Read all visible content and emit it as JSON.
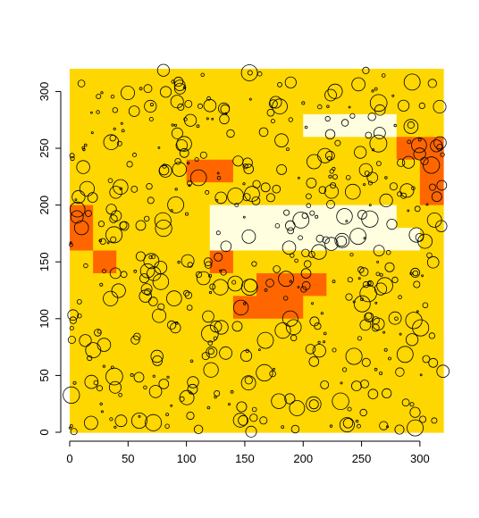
{
  "chart_data": {
    "type": "heatmap",
    "title": "",
    "xlabel": "",
    "ylabel": "",
    "xlim": [
      0,
      320
    ],
    "ylim": [
      0,
      320
    ],
    "grid": false,
    "x_ticks": [
      "0",
      "50",
      "100",
      "150",
      "200",
      "250",
      "300"
    ],
    "y_ticks": [
      "0",
      "50",
      "100",
      "150",
      "200",
      "250",
      "300"
    ],
    "x_tick_values": [
      0,
      50,
      100,
      150,
      200,
      250,
      300
    ],
    "y_tick_values": [
      0,
      50,
      100,
      150,
      200,
      250,
      300
    ],
    "cell_size": 20,
    "palette": [
      "#FF0000",
      "#FF6600",
      "#FFD700",
      "#FFFFE0"
    ],
    "grid_rows_top_to_bottom": [
      "2222222222222222",
      "2222222222222222",
      "2222222222333322",
      "2222222222222211",
      "2222211222222221",
      "2222222222222221",
      "1222223333333322",
      "1222223333333332",
      "2122221222222222",
      "2222222211122222",
      "2222222111222222",
      "2222222222222222",
      "2222222222222222",
      "2222222222222222",
      "2222222222222222",
      "2222222222222222"
    ]
  }
}
